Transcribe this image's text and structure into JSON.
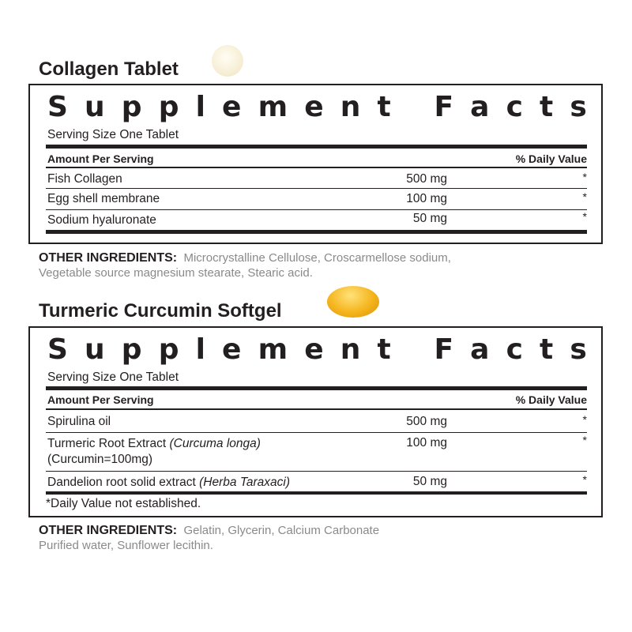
{
  "panels": [
    {
      "title": "Collagen Tablet",
      "pill_icon": "round-tablet",
      "heading": "Supplement Facts",
      "serving_size": "Serving Size One Tablet",
      "col_amount": "Amount Per Serving",
      "col_dv": "% Daily Value",
      "rows": [
        {
          "name": "Fish Collagen",
          "amount": "500 mg",
          "dv": "*"
        },
        {
          "name": "Egg shell membrane",
          "amount": "100 mg",
          "dv": "*"
        },
        {
          "name": "Sodium hyaluronate",
          "amount": "50 mg",
          "dv": "*"
        }
      ],
      "other_label": "OTHER INGREDIENTS:",
      "other_line1": "Microcrystalline Cellulose, Croscarmellose sodium,",
      "other_line2": "Vegetable source magnesium stearate, Stearic acid."
    },
    {
      "title": "Turmeric Curcumin Softgel",
      "pill_icon": "softgel-capsule",
      "heading": "Supplement Facts",
      "serving_size": "Serving Size One Tablet",
      "col_amount": "Amount Per Serving",
      "col_dv": "% Daily Value",
      "rows": [
        {
          "name": "Spirulina oil",
          "amount": "500 mg",
          "dv": "*"
        },
        {
          "name": "Turmeric Root Extract ",
          "name_italic": "(Curcuma longa)",
          "name_line2": "(Curcumin=100mg)",
          "amount": "100 mg",
          "dv": "*"
        },
        {
          "name": "Dandelion root solid extract ",
          "name_italic": "(Herba Taraxaci)",
          "amount": "50 mg",
          "dv": "*"
        }
      ],
      "footnote": "*Daily Value not established.",
      "other_label": "OTHER INGREDIENTS:",
      "other_line1": "Gelatin, Glycerin, Calcium Carbonate",
      "other_line2": "Purified water, Sunflower lecithin."
    }
  ],
  "colors": {
    "text": "#231f20",
    "muted": "#8a8a8a",
    "tablet": "#f7efd6",
    "softgel": "#f2b01e"
  }
}
